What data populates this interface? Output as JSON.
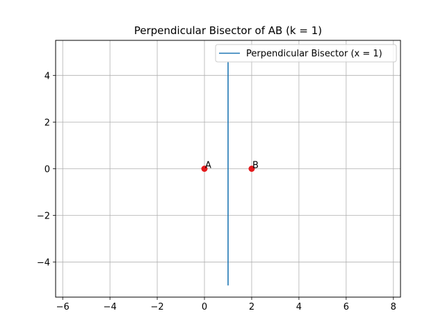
{
  "chart_data": {
    "type": "line",
    "title": "Perpendicular Bisector of AB (k = 1)",
    "xlabel": "",
    "ylabel": "",
    "xlim": [
      -6.3,
      8.3
    ],
    "ylim": [
      -5.5,
      5.5
    ],
    "x_ticks": [
      -6,
      -4,
      -2,
      0,
      2,
      4,
      6,
      8
    ],
    "y_ticks": [
      -4,
      -2,
      0,
      2,
      4
    ],
    "grid": true,
    "legend_position": "top-right",
    "series": [
      {
        "name": "Perpendicular Bisector (x = 1)",
        "color": "#1f77b4",
        "x": [
          1,
          1
        ],
        "y": [
          -5,
          4.6
        ]
      }
    ],
    "points": [
      {
        "label": "A",
        "x": 0,
        "y": 0,
        "color": "#e41a1c"
      },
      {
        "label": "B",
        "x": 2,
        "y": 0,
        "color": "#e41a1c"
      }
    ]
  }
}
